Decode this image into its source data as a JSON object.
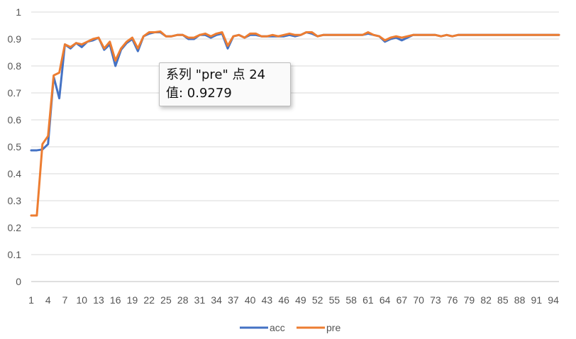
{
  "chart_data": {
    "type": "line",
    "title": "",
    "xlabel": "",
    "ylabel": "",
    "ylim": [
      0,
      1
    ],
    "yticks": [
      "0",
      "0.1",
      "0.2",
      "0.3",
      "0.4",
      "0.5",
      "0.6",
      "0.7",
      "0.8",
      "0.9",
      "1"
    ],
    "xtick_labels": [
      "1",
      "4",
      "7",
      "10",
      "13",
      "16",
      "19",
      "22",
      "25",
      "28",
      "31",
      "34",
      "37",
      "40",
      "43",
      "46",
      "49",
      "52",
      "55",
      "58",
      "61",
      "64",
      "67",
      "70",
      "73",
      "76",
      "79",
      "82",
      "85",
      "88",
      "91",
      "94"
    ],
    "x_start": 1,
    "x_end": 95,
    "grid": true,
    "legend_position": "bottom",
    "series": [
      {
        "name": "acc",
        "color": "#4472c4",
        "values": [
          0.487,
          0.487,
          0.49,
          0.51,
          0.76,
          0.68,
          0.88,
          0.865,
          0.885,
          0.87,
          0.89,
          0.895,
          0.905,
          0.86,
          0.88,
          0.8,
          0.86,
          0.885,
          0.9,
          0.855,
          0.91,
          0.92,
          0.925,
          0.925,
          0.91,
          0.91,
          0.915,
          0.915,
          0.9,
          0.9,
          0.915,
          0.915,
          0.905,
          0.915,
          0.92,
          0.865,
          0.91,
          0.915,
          0.905,
          0.915,
          0.915,
          0.91,
          0.91,
          0.91,
          0.91,
          0.91,
          0.915,
          0.91,
          0.915,
          0.925,
          0.92,
          0.91,
          0.915,
          0.915,
          0.915,
          0.915,
          0.915,
          0.915,
          0.915,
          0.915,
          0.92,
          0.915,
          0.91,
          0.89,
          0.9,
          0.905,
          0.895,
          0.905,
          0.915,
          0.915,
          0.915,
          0.915,
          0.915,
          0.91,
          0.915,
          0.91,
          0.915,
          0.915,
          0.915,
          0.915,
          0.915,
          0.915,
          0.915,
          0.915,
          0.915,
          0.915,
          0.915,
          0.915,
          0.915,
          0.915,
          0.915,
          0.915,
          0.915,
          0.915,
          0.915
        ]
      },
      {
        "name": "pre",
        "color": "#ed7d31",
        "values": [
          0.245,
          0.245,
          0.51,
          0.54,
          0.765,
          0.775,
          0.88,
          0.87,
          0.885,
          0.88,
          0.89,
          0.9,
          0.905,
          0.865,
          0.89,
          0.82,
          0.865,
          0.89,
          0.905,
          0.865,
          0.91,
          0.925,
          0.925,
          0.9279,
          0.91,
          0.91,
          0.915,
          0.915,
          0.905,
          0.905,
          0.915,
          0.92,
          0.91,
          0.92,
          0.925,
          0.875,
          0.91,
          0.915,
          0.905,
          0.92,
          0.92,
          0.91,
          0.91,
          0.915,
          0.91,
          0.915,
          0.92,
          0.915,
          0.915,
          0.925,
          0.925,
          0.91,
          0.915,
          0.915,
          0.915,
          0.915,
          0.915,
          0.915,
          0.915,
          0.915,
          0.925,
          0.915,
          0.91,
          0.895,
          0.905,
          0.91,
          0.905,
          0.91,
          0.915,
          0.915,
          0.915,
          0.915,
          0.915,
          0.91,
          0.915,
          0.91,
          0.915,
          0.915,
          0.915,
          0.915,
          0.915,
          0.915,
          0.915,
          0.915,
          0.915,
          0.915,
          0.915,
          0.915,
          0.915,
          0.915,
          0.915,
          0.915,
          0.915,
          0.915,
          0.915
        ]
      }
    ],
    "tooltip": {
      "line1": "系列 \"pre\" 点 24",
      "line2": "值: 0.9279"
    }
  }
}
